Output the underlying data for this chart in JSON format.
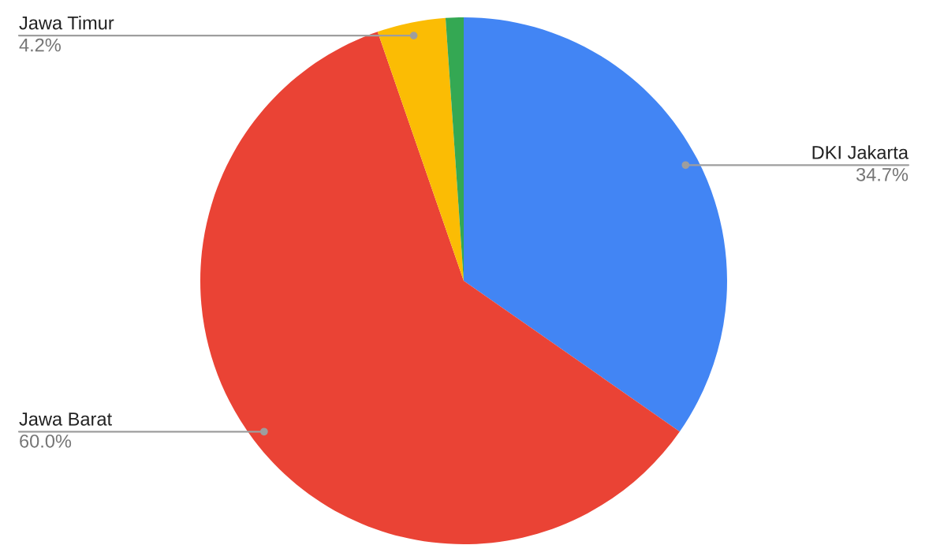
{
  "chart_data": {
    "type": "pie",
    "categories": [
      "DKI Jakarta",
      "Jawa Barat",
      "Jawa Timur",
      null
    ],
    "values": [
      34.7,
      60.0,
      4.2,
      1.1
    ],
    "colors": [
      "#4285f4",
      "#ea4335",
      "#fbbc04",
      "#34a853"
    ],
    "value_labels": [
      "34.7%",
      "60.0%",
      "4.2%",
      null
    ],
    "legend": false
  }
}
